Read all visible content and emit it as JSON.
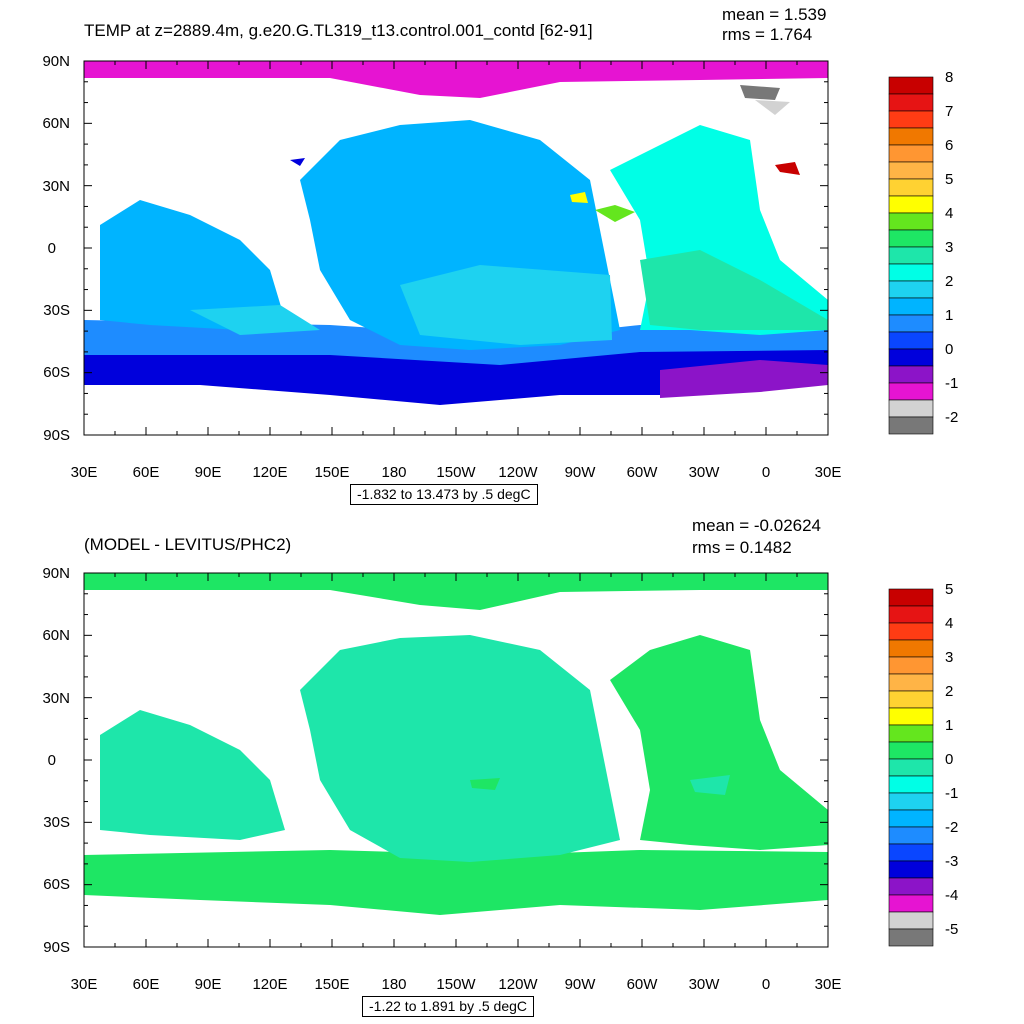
{
  "colors": {
    "ocean_top": [
      "#1e8fe6",
      "#00b4f5",
      "#1ad4f5",
      "#a0e8ff"
    ],
    "land": "#ffffff"
  },
  "panel1": {
    "title": "TEMP at z=2889.4m, g.e20.G.TL319_t13.control.001_contd [62-91]",
    "mean": "mean = 1.539",
    "rms": "rms = 1.764",
    "range": "-1.832 to 13.473 by .5 degC",
    "lat_labels": [
      "90N",
      "60N",
      "30N",
      "0",
      "30S",
      "60S",
      "90S"
    ],
    "lon_labels": [
      "30E",
      "60E",
      "90E",
      "120E",
      "150E",
      "180",
      "150W",
      "120W",
      "90W",
      "60W",
      "30W",
      "0",
      "30E"
    ],
    "legend": {
      "labels": [
        "8",
        "7",
        "6",
        "5",
        "4",
        "3",
        "2",
        "1",
        "0",
        "-1",
        "-2"
      ],
      "colors": [
        "#c80000",
        "#e61414",
        "#ff3c14",
        "#f07800",
        "#ff9632",
        "#ffb446",
        "#ffd232",
        "#ffff00",
        "#64e61e",
        "#1ee664",
        "#1ee6aa",
        "#00ffe6",
        "#1ed2f0",
        "#00b4ff",
        "#1e8cff",
        "#0a46ff",
        "#0000dc",
        "#8c14c8",
        "#e614d2",
        "#d2d2d2",
        "#787878"
      ]
    }
  },
  "panel2": {
    "title": "(MODEL - LEVITUS/PHC2)",
    "mean": "mean = -0.02624",
    "rms": "rms = 0.1482",
    "range": "-1.22 to 1.891 by .5 degC",
    "lat_labels": [
      "90N",
      "60N",
      "30N",
      "0",
      "30S",
      "60S",
      "90S"
    ],
    "lon_labels": [
      "30E",
      "60E",
      "90E",
      "120E",
      "150E",
      "180",
      "150W",
      "120W",
      "90W",
      "60W",
      "30W",
      "0",
      "30E"
    ],
    "legend": {
      "labels": [
        "5",
        "4",
        "3",
        "2",
        "1",
        "0",
        "-1",
        "-2",
        "-3",
        "-4",
        "-5"
      ],
      "colors": [
        "#c80000",
        "#e61414",
        "#ff3c14",
        "#f07800",
        "#ff9632",
        "#ffb446",
        "#ffd232",
        "#ffff00",
        "#64e61e",
        "#1ee664",
        "#1ee6aa",
        "#00ffe6",
        "#1ed2f0",
        "#00b4ff",
        "#1e8cff",
        "#0a46ff",
        "#0000dc",
        "#8c14c8",
        "#e614d2",
        "#d2d2d2",
        "#787878"
      ]
    }
  }
}
